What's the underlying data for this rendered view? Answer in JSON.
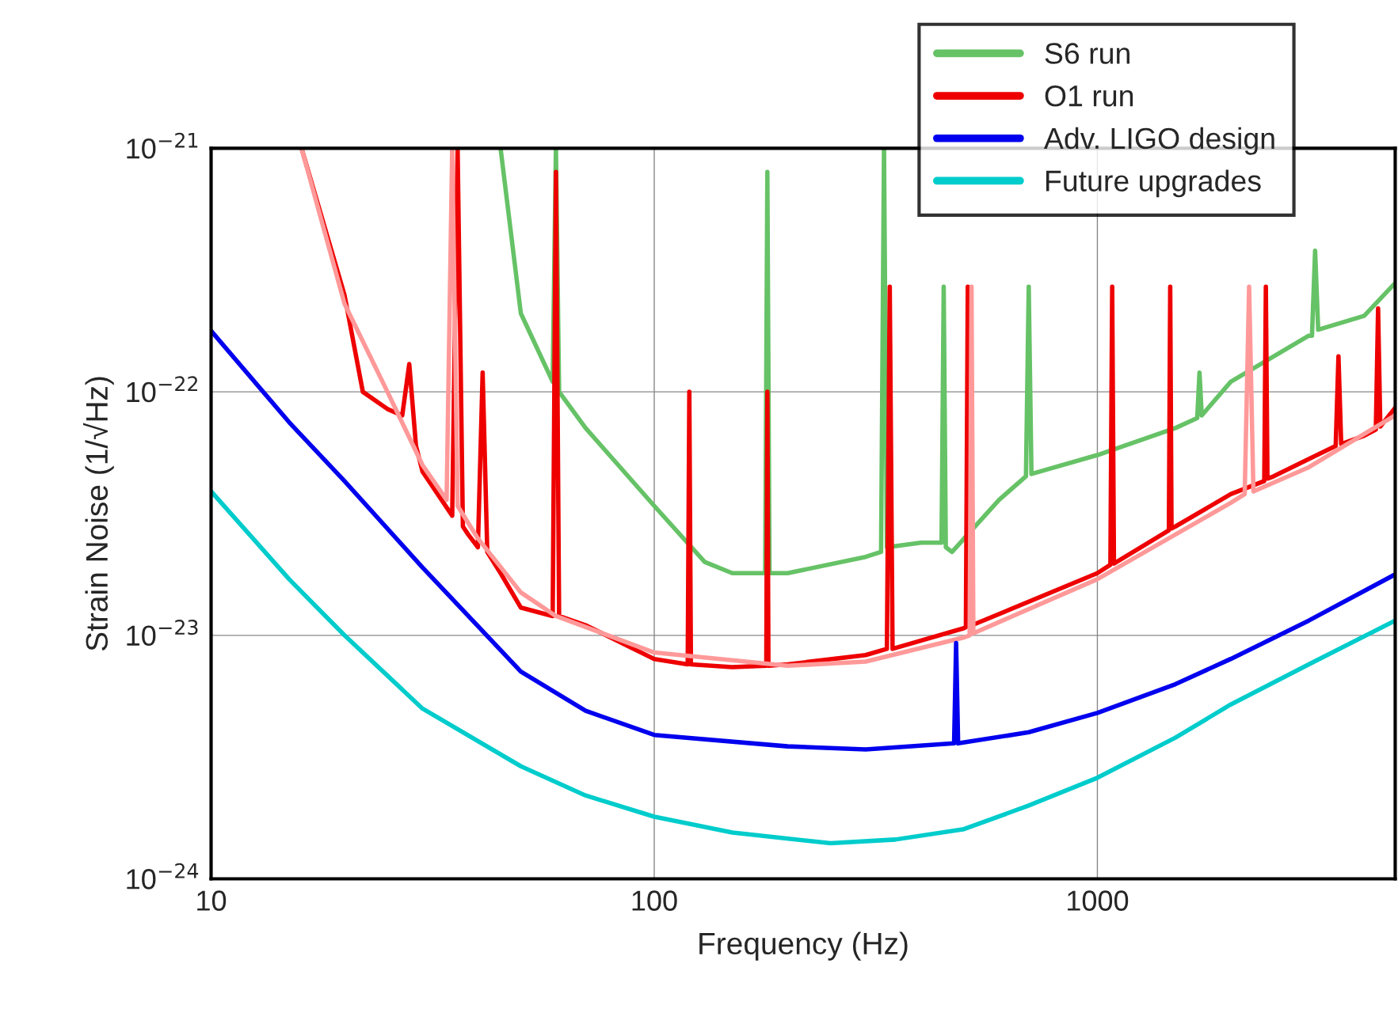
{
  "chart_data": {
    "type": "line",
    "xlabel": "Frequency (Hz)",
    "ylabel": "Strain Noise (1/√Hz)",
    "log": "xy",
    "grid": true,
    "legend": "top right",
    "xlim": [
      10,
      4700
    ],
    "xticks": [
      10,
      100,
      1000
    ],
    "ylim": [
      1e-24,
      1e-21
    ],
    "yticks": [
      {
        "value": 1e-24,
        "label": "10$^{−24}$"
      },
      {
        "value": 1e-23,
        "label": "10$^{−23}$"
      },
      {
        "value": 1e-22,
        "label": "10$^{−22}$"
      },
      {
        "value": 1e-21,
        "label": "10$^{−21}$"
      }
    ],
    "series": [
      {
        "name": "S6 run",
        "color": "#66c266",
        "x": [
          45,
          50,
          59,
          60,
          61,
          70,
          100,
          130,
          150,
          178,
          180,
          182,
          200,
          300,
          325,
          330,
          335,
          400,
          445,
          450,
          455,
          470,
          600,
          690,
          700,
          710,
          1000,
          1500,
          1680,
          1700,
          1720,
          2000,
          3000,
          3050,
          3100,
          3150,
          4000,
          4700
        ],
        "values": [
          1e-21,
          2.1e-22,
          1.1e-22,
          1e-21,
          1e-22,
          7.1e-23,
          3.4e-23,
          2e-23,
          1.8e-23,
          1.8e-23,
          8e-22,
          1.8e-23,
          1.8e-23,
          2.1e-23,
          2.2e-23,
          1e-21,
          2.3e-23,
          2.4e-23,
          2.4e-23,
          2.7e-22,
          2.3e-23,
          2.2e-23,
          3.6e-23,
          4.5e-23,
          2.7e-22,
          4.6e-23,
          5.5e-23,
          7.1e-23,
          7.8e-23,
          1.2e-22,
          8e-23,
          1.1e-22,
          1.7e-22,
          1.7e-22,
          3.8e-22,
          1.8e-22,
          2.05e-22,
          2.8e-22
        ]
      },
      {
        "name": "O1 run",
        "color": "#ee0000",
        "x": [
          16,
          20,
          22,
          25,
          27,
          28,
          29,
          30,
          35,
          36,
          37,
          38,
          40,
          41,
          42,
          45,
          50,
          59,
          60,
          61,
          70,
          100,
          119,
          120,
          121,
          150,
          179,
          180,
          181,
          200,
          300,
          335,
          340,
          345,
          500,
          505,
          510,
          515,
          1000,
          1070,
          1080,
          1090,
          1450,
          1460,
          1470,
          1500,
          2000,
          2380,
          2400,
          2420,
          2500,
          3000,
          3450,
          3500,
          3550,
          4000,
          4250,
          4300,
          4350,
          4700
        ],
        "values": [
          1e-21,
          2.5e-22,
          1e-22,
          8.5e-23,
          8e-23,
          1.3e-22,
          6e-23,
          4.7e-23,
          3.1e-23,
          1e-21,
          2.8e-23,
          2.6e-23,
          2.3e-23,
          1.2e-22,
          2.2e-23,
          1.8e-23,
          1.3e-23,
          1.2e-23,
          8e-22,
          1.2e-23,
          1.1e-23,
          8e-24,
          7.6e-24,
          1e-22,
          7.6e-24,
          7.4e-24,
          7.5e-24,
          1e-22,
          7.5e-24,
          7.6e-24,
          8.3e-24,
          8.8e-24,
          2.7e-22,
          8.8e-24,
          1.07e-23,
          1.08e-23,
          2.7e-22,
          1.09e-23,
          1.8e-23,
          1.95e-23,
          2.7e-22,
          1.97e-23,
          2.7e-23,
          2.7e-22,
          2.75e-23,
          2.8e-23,
          3.8e-23,
          4.3e-23,
          2.7e-22,
          4.4e-23,
          4.5e-23,
          5.3e-23,
          6e-23,
          1.4e-22,
          6.1e-23,
          6.6e-23,
          7e-23,
          2.2e-22,
          7.2e-23,
          8.6e-23
        ]
      },
      {
        "color": "#ff9999",
        "x": [
          16,
          20,
          25,
          30,
          34,
          35,
          36,
          40,
          50,
          60,
          100,
          200,
          300,
          500,
          515,
          520,
          525,
          1000,
          2000,
          2150,
          2200,
          2250,
          3000,
          4700
        ],
        "values": [
          1e-21,
          2.3e-22,
          1e-22,
          5e-23,
          3.6e-23,
          1e-21,
          3.4e-23,
          2.5e-23,
          1.5e-23,
          1.2e-23,
          8.5e-24,
          7.5e-24,
          7.8e-24,
          9.8e-24,
          1e-23,
          2.7e-22,
          1.02e-23,
          1.7e-23,
          3.5e-23,
          3.8e-23,
          2.7e-22,
          3.9e-23,
          4.9e-23,
          8e-23
        ]
      },
      {
        "name": "Adv. LIGO design",
        "color": "#0000ee",
        "x": [
          10,
          15,
          20,
          30,
          50,
          70,
          100,
          200,
          300,
          475,
          480,
          485,
          700,
          1000,
          1500,
          2000,
          3000,
          4700
        ],
        "values": [
          1.78e-22,
          7.5e-23,
          4.3e-23,
          1.9e-23,
          7.1e-24,
          4.9e-24,
          3.9e-24,
          3.5e-24,
          3.4e-24,
          3.6e-24,
          9.3e-24,
          3.6e-24,
          4e-24,
          4.8e-24,
          6.3e-24,
          8e-24,
          1.15e-23,
          1.78e-23
        ]
      },
      {
        "name": "Future upgrades",
        "color": "#00cccc",
        "x": [
          10,
          15,
          20,
          30,
          50,
          70,
          100,
          150,
          250,
          350,
          500,
          700,
          1000,
          1500,
          2000,
          3000,
          4700
        ],
        "values": [
          3.9e-23,
          1.7e-23,
          1e-23,
          5e-24,
          2.9e-24,
          2.2e-24,
          1.8e-24,
          1.55e-24,
          1.4e-24,
          1.45e-24,
          1.6e-24,
          2e-24,
          2.6e-24,
          3.8e-24,
          5.2e-24,
          7.6e-24,
          1.15e-23
        ]
      }
    ]
  }
}
